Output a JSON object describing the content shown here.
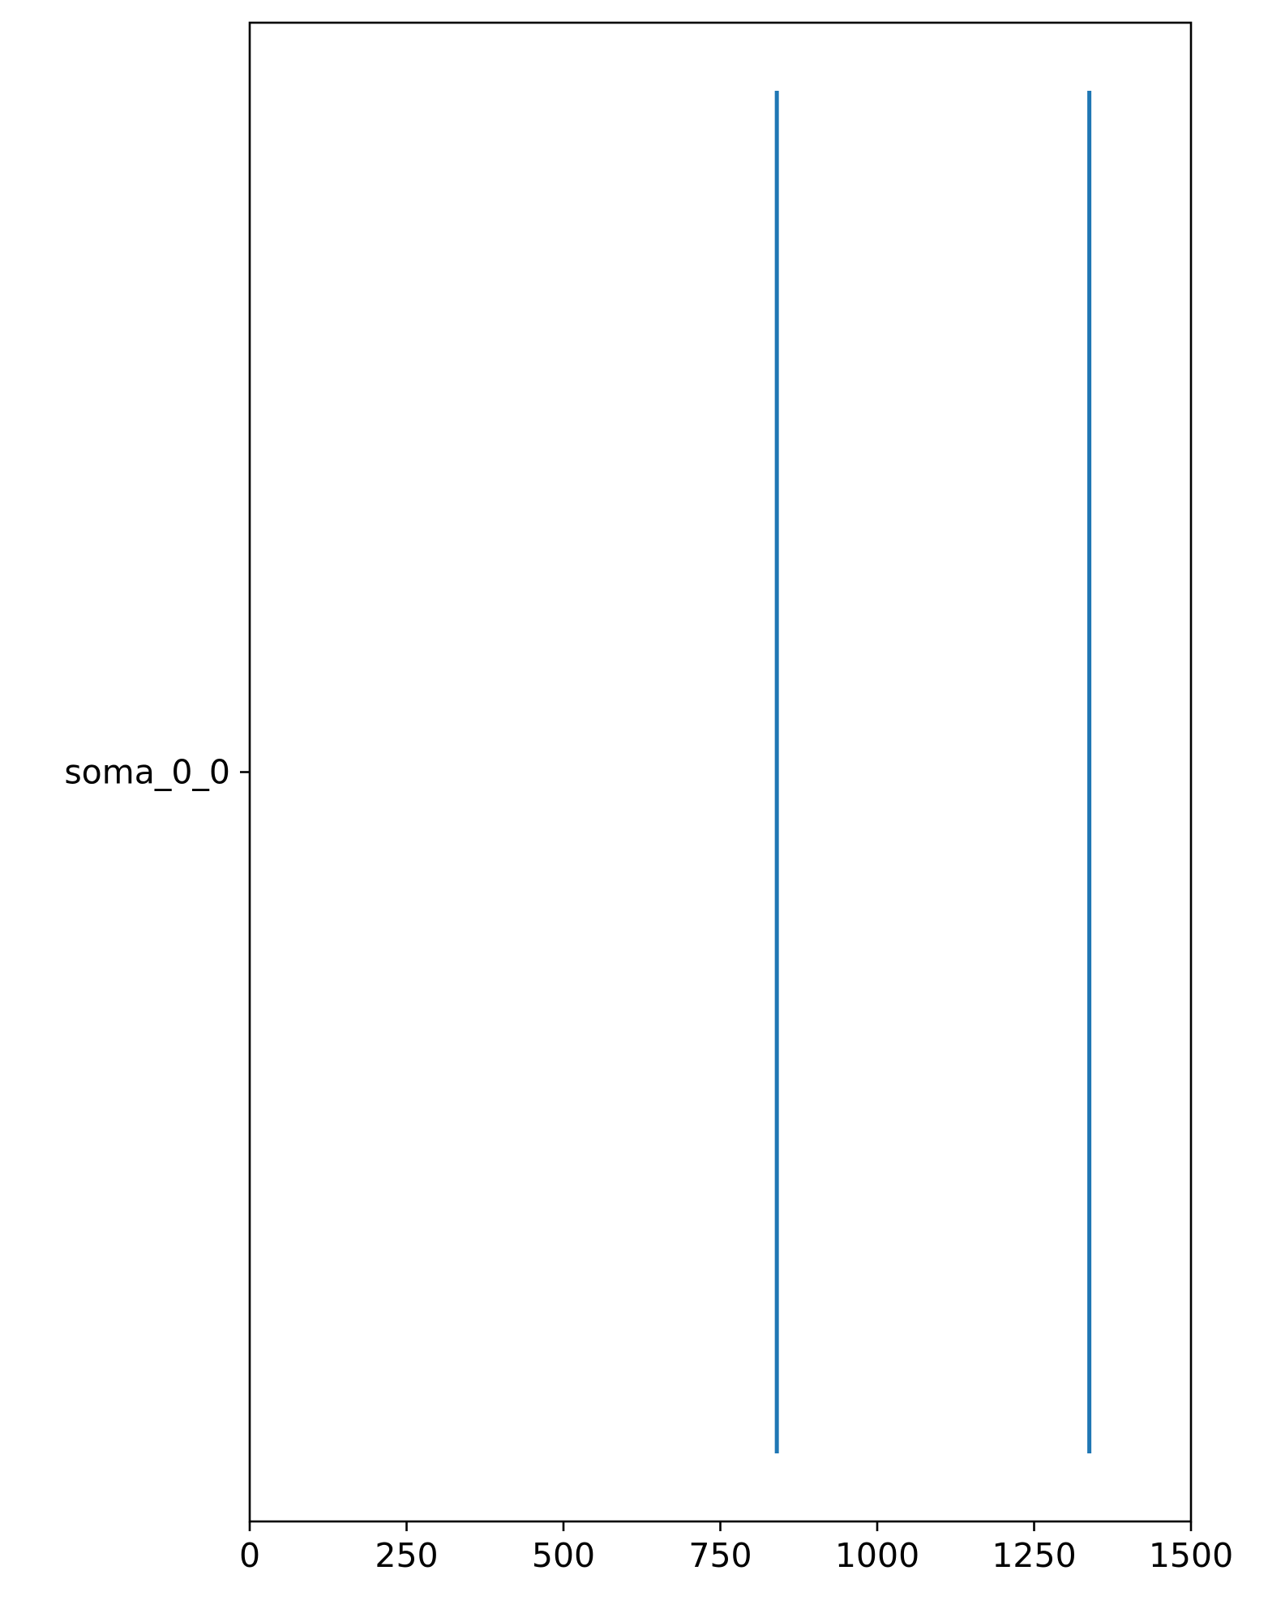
{
  "chart_data": {
    "type": "eventplot",
    "xlim": [
      0,
      1500
    ],
    "xticks": [
      0,
      250,
      500,
      750,
      1000,
      1250,
      1500
    ],
    "xtick_labels": [
      "0",
      "250",
      "500",
      "750",
      "1000",
      "1250",
      "1500"
    ],
    "yticks": [
      "soma_0_0"
    ],
    "series": [
      {
        "category": "soma_0_0",
        "events": [
          840,
          1338
        ]
      }
    ],
    "title": "",
    "xlabel": "",
    "ylabel": "",
    "grid": false,
    "legend": false,
    "colors": {
      "events": "#1f77b4",
      "axes": "#000000"
    }
  }
}
